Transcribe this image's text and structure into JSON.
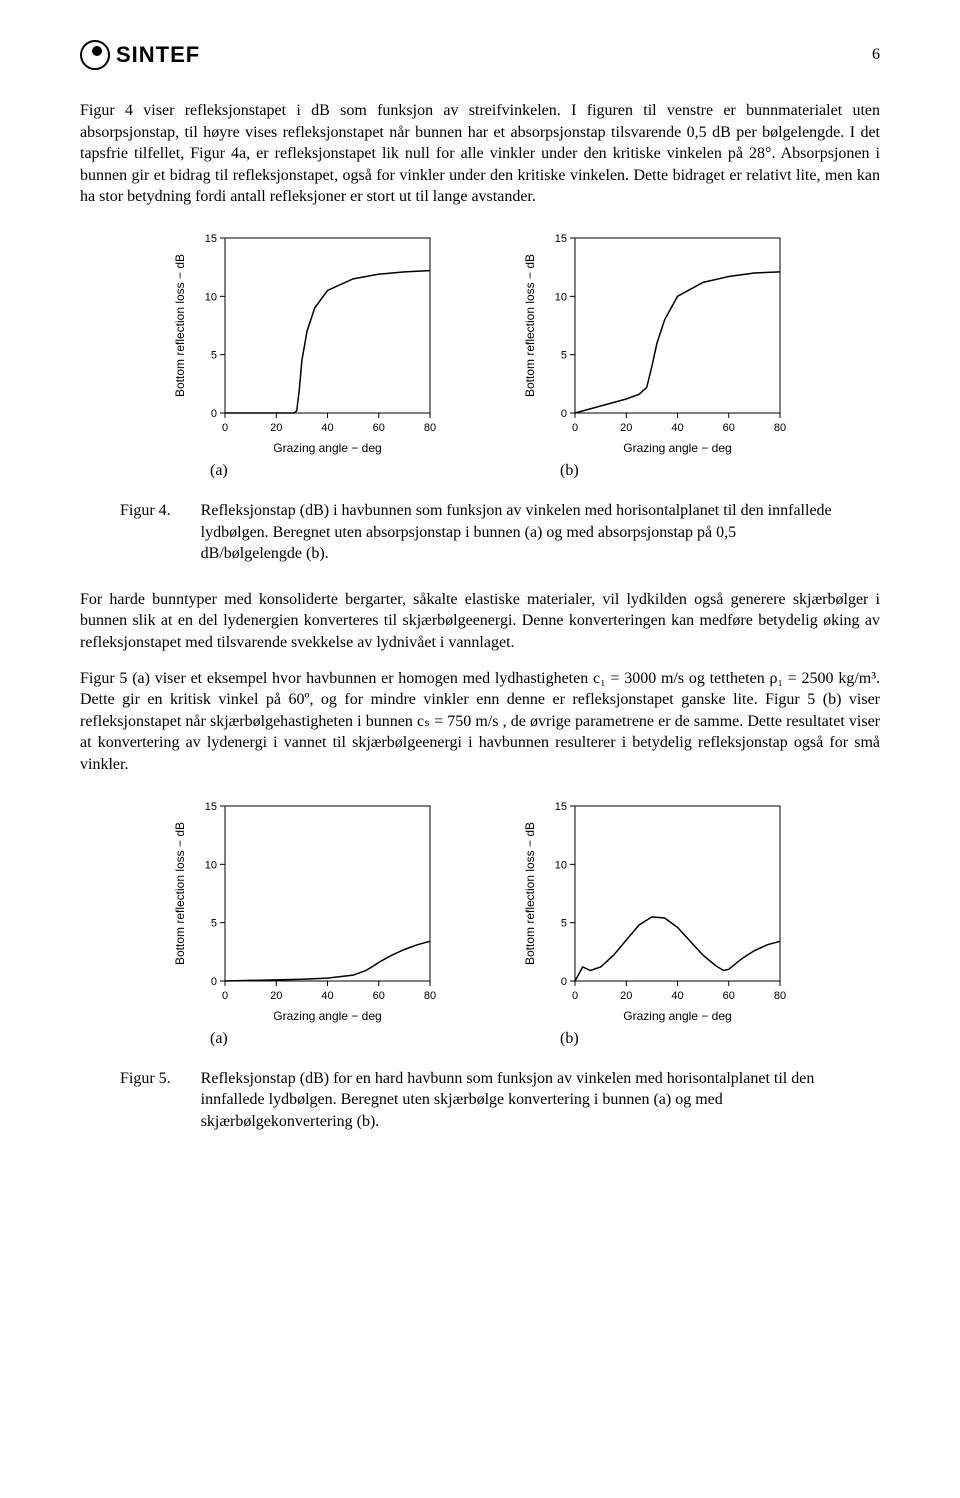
{
  "header": {
    "logo_text": "SINTEF",
    "page_number": "6"
  },
  "para1": "Figur 4 viser refleksjonstapet i dB som funksjon av streifvinkelen. I figuren til venstre er bunnmaterialet uten absorpsjonstap, til høyre vises refleksjonstapet når bunnen har et absorpsjonstap tilsvarende 0,5 dB per bølgelengde. I det tapsfrie tilfellet, Figur 4a, er refleksjonstapet lik null for alle vinkler under den kritiske vinkelen på 28°. Absorpsjonen i bunnen gir et bidrag til refleksjonstapet, også for vinkler under den kritiske vinkelen. Dette bidraget er relativt lite, men kan ha stor betydning fordi antall refleksjoner er stort ut til lange avstander.",
  "chart_common": {
    "xlabel": "Grazing angle − deg",
    "ylabel": "Bottom reflection loss − dB",
    "xlim": [
      0,
      80
    ],
    "ylim": [
      0,
      15
    ],
    "xticks": [
      0,
      20,
      40,
      60,
      80
    ],
    "yticks": [
      0,
      5,
      10,
      15
    ],
    "axis_fontsize": 12,
    "tick_fontsize": 11,
    "line_color": "#000000",
    "line_width": 1.5,
    "box_color": "#000000",
    "background": "#ffffff"
  },
  "fig4": {
    "a_label": "(a)",
    "b_label": "(b)",
    "chart_a": {
      "type": "line",
      "points": [
        [
          0,
          0
        ],
        [
          27,
          0
        ],
        [
          28,
          0.2
        ],
        [
          29,
          2
        ],
        [
          30,
          4.5
        ],
        [
          32,
          7
        ],
        [
          35,
          9
        ],
        [
          40,
          10.5
        ],
        [
          50,
          11.5
        ],
        [
          60,
          11.9
        ],
        [
          70,
          12.1
        ],
        [
          80,
          12.2
        ]
      ]
    },
    "chart_b": {
      "type": "line",
      "points": [
        [
          0,
          0
        ],
        [
          5,
          0.3
        ],
        [
          10,
          0.6
        ],
        [
          15,
          0.9
        ],
        [
          20,
          1.2
        ],
        [
          25,
          1.6
        ],
        [
          28,
          2.2
        ],
        [
          30,
          4
        ],
        [
          32,
          6
        ],
        [
          35,
          8
        ],
        [
          40,
          10
        ],
        [
          50,
          11.2
        ],
        [
          60,
          11.7
        ],
        [
          70,
          12
        ],
        [
          80,
          12.1
        ]
      ]
    },
    "caption_label": "Figur 4.",
    "caption_text": "Refleksjonstap (dB) i havbunnen som funksjon av vinkelen med horisontalplanet til den innfallede lydbølgen. Beregnet uten absorpsjonstap i bunnen (a) og med absorpsjonstap på 0,5 dB/bølgelengde (b)."
  },
  "para2_html": "For harde bunntyper med konsoliderte bergarter, såkalte elastiske materialer, vil lydkilden også generere skjærbølger i bunnen slik at en del lydenergien konverteres til skjærbølgeenergi. Denne konverteringen kan medføre betydelig øking av refleksjonstapet med tilsvarende svekkelse av lydnivået i vannlaget.",
  "para3_html": "Figur 5 (a) viser et eksempel hvor havbunnen er homogen med lydhastigheten c₁ = 3000 m/s og tettheten ρ₁ = 2500 kg/m³. Dette gir en kritisk vinkel på 60º, og for mindre vinkler enn denne er refleksjonstapet ganske lite. Figur 5 (b) viser refleksjonstapet når skjærbølgehastigheten i bunnen cₛ = 750 m/s , de øvrige parametrene er de samme. Dette resultatet viser at konvertering av lydenergi i vannet til skjærbølgeenergi i havbunnen resulterer i betydelig refleksjonstap også for små vinkler.",
  "fig5": {
    "a_label": "(a)",
    "b_label": "(b)",
    "chart_a": {
      "type": "line",
      "points": [
        [
          0,
          0
        ],
        [
          10,
          0.05
        ],
        [
          20,
          0.1
        ],
        [
          30,
          0.15
        ],
        [
          40,
          0.25
        ],
        [
          50,
          0.5
        ],
        [
          55,
          0.9
        ],
        [
          58,
          1.3
        ],
        [
          60,
          1.6
        ],
        [
          65,
          2.2
        ],
        [
          70,
          2.7
        ],
        [
          75,
          3.1
        ],
        [
          80,
          3.4
        ]
      ]
    },
    "chart_b": {
      "type": "line",
      "points": [
        [
          0,
          0
        ],
        [
          3,
          1.2
        ],
        [
          6,
          0.9
        ],
        [
          10,
          1.2
        ],
        [
          15,
          2.2
        ],
        [
          20,
          3.5
        ],
        [
          25,
          4.8
        ],
        [
          30,
          5.5
        ],
        [
          35,
          5.4
        ],
        [
          40,
          4.6
        ],
        [
          45,
          3.4
        ],
        [
          50,
          2.2
        ],
        [
          55,
          1.3
        ],
        [
          58,
          0.9
        ],
        [
          60,
          1.0
        ],
        [
          65,
          1.9
        ],
        [
          70,
          2.6
        ],
        [
          75,
          3.1
        ],
        [
          80,
          3.4
        ]
      ]
    },
    "caption_label": "Figur 5.",
    "caption_text": "Refleksjonstap (dB) for en hard havbunn som funksjon av vinkelen med horisontalplanet til den innfallede lydbølgen. Beregnet uten skjærbølge konvertering i bunnen (a) og med skjærbølgekonvertering (b)."
  }
}
